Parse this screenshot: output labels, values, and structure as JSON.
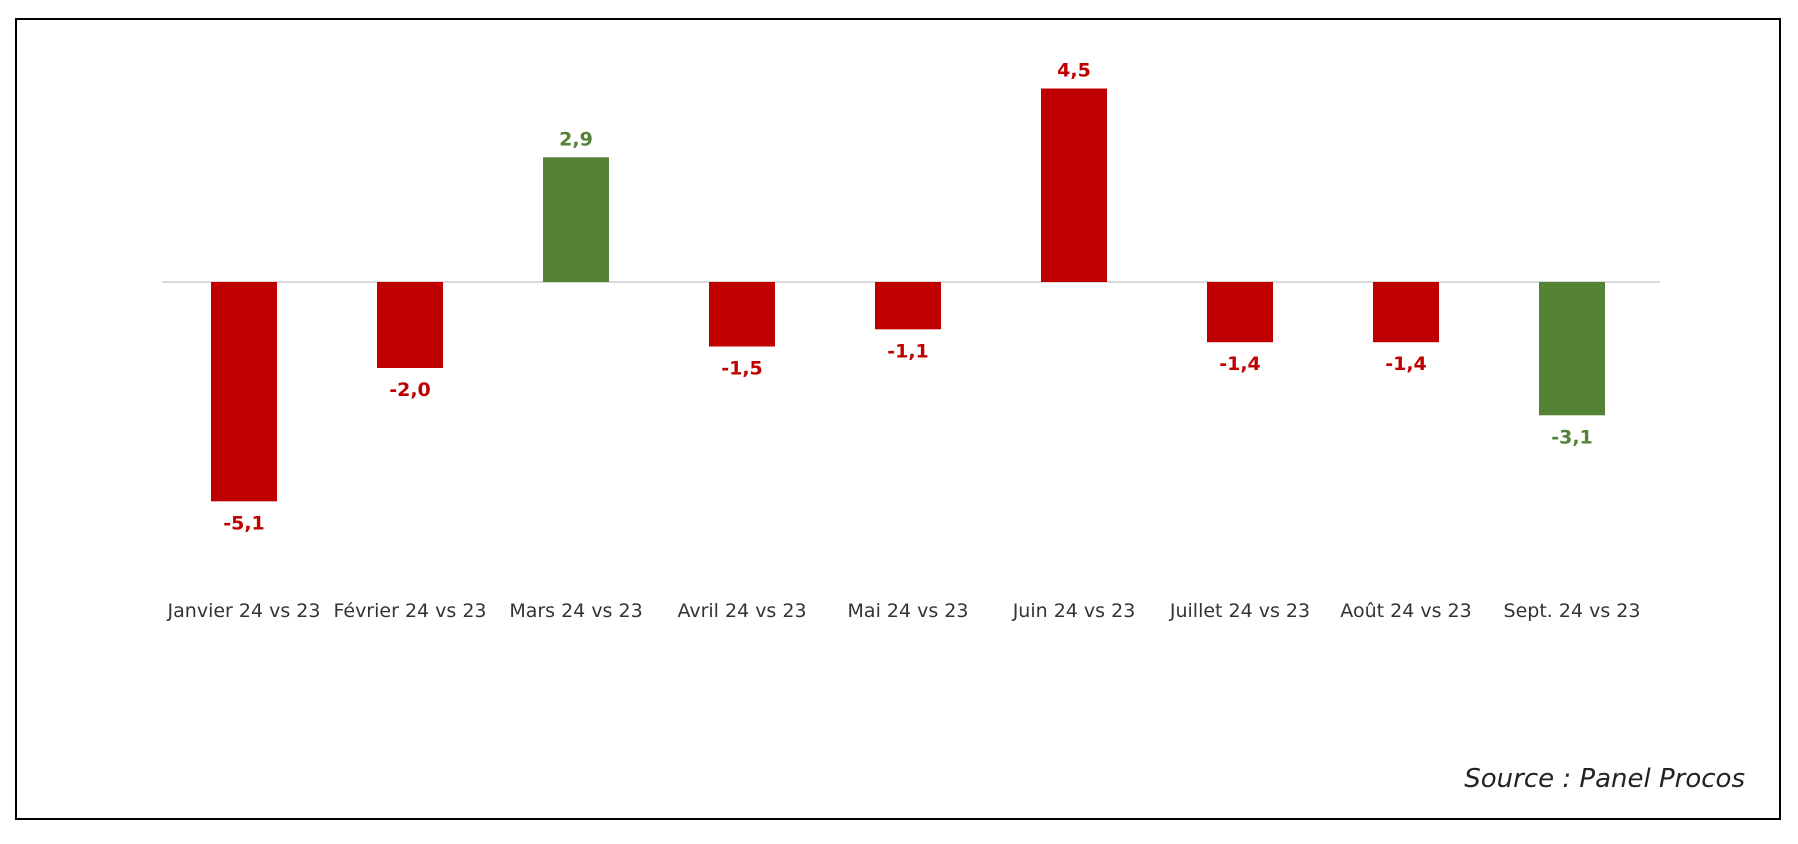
{
  "chart_data": {
    "type": "bar",
    "categories": [
      "Janvier 24 vs 23",
      "Février 24 vs 23",
      "Mars 24 vs 23",
      "Avril 24 vs 23",
      "Mai 24 vs 23",
      "Juin 24 vs 23",
      "Juillet 24 vs 23",
      "Août 24 vs 23",
      "Sept. 24 vs 23"
    ],
    "values": [
      -5.1,
      -2.0,
      2.9,
      -1.5,
      -1.1,
      4.5,
      -1.4,
      -1.4,
      -3.1
    ],
    "value_labels": [
      "-5,1",
      "-2,0",
      "2,9",
      "-1,5",
      "-1,1",
      "4,5",
      "-1,4",
      "-1,4",
      "-3,1"
    ],
    "bar_colors": [
      "#c00000",
      "#c00000",
      "#548235",
      "#c00000",
      "#c00000",
      "#c00000",
      "#c00000",
      "#c00000",
      "#548235"
    ],
    "title": "",
    "xlabel": "",
    "ylabel": "",
    "ylim": [
      -5.5,
      5
    ],
    "grid": false,
    "legend": "none"
  },
  "source_text": "Source : Panel Procos",
  "colors": {
    "red": "#c00000",
    "green": "#548235",
    "axis": "#d9d9d9"
  }
}
